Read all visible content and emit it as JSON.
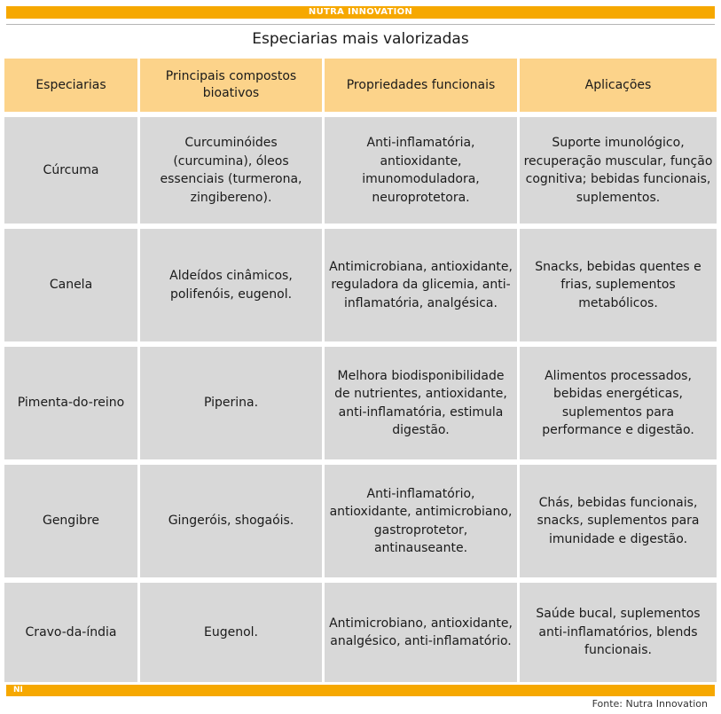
{
  "header": {
    "brand": "NUTRA INNOVATION"
  },
  "title": "Especiarias mais valorizadas",
  "table": {
    "columns": [
      "Especiarias",
      "Principais compostos bioativos",
      "Propriedades funcionais",
      "Aplicações"
    ],
    "rows": [
      [
        "Cúrcuma",
        "Curcuminóides (curcumina), óleos essenciais (turmerona, zingibereno).",
        "Anti-inflamatória, antioxidante, imunomoduladora, neuroprotetora.",
        "Suporte imunológico, recuperação muscular, função cognitiva; bebidas funcionais, suplementos."
      ],
      [
        "Canela",
        "Aldeídos cinâmicos, polifenóis, eugenol.",
        "Antimicrobiana, antioxidante, reguladora da glicemia, anti-inflamatória, analgésica.",
        "Snacks, bebidas quentes e frias, suplementos metabólicos."
      ],
      [
        "Pimenta-do-reino",
        "Piperina.",
        "Melhora biodisponibilidade de nutrientes, antioxidante, anti-inflamatória, estimula digestão.",
        "Alimentos processados, bebidas energéticas, suplementos para performance e digestão."
      ],
      [
        "Gengibre",
        "Gingeróis, shogaóis.",
        "Anti-inflamatório, antioxidante, antimicrobiano, gastroprotetor, antinauseante.",
        "Chás, bebidas funcionais, snacks, suplementos para imunidade e digestão."
      ],
      [
        "Cravo-da-índia",
        "Eugenol.",
        "Antimicrobiano, antioxidante, analgésico, anti-inflamatório.",
        "Saúde bucal, suplementos anti-inflamatórios, blends funcionais."
      ]
    ]
  },
  "footer": {
    "brand_abbr": "NI",
    "source": "Fonte: Nutra Innovation"
  },
  "colors": {
    "accent": "#f6a800",
    "header_cell": "#fcd38a",
    "body_cell": "#d8d8d8"
  }
}
